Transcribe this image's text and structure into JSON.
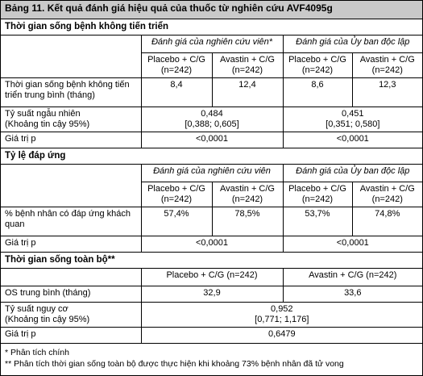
{
  "title": "Bảng 11. Kết quả đánh giá hiệu quả của thuốc từ nghiên cứu AVF4095g",
  "pfs": {
    "heading": "Thời gian sống bệnh không tiến triển",
    "hdr_investigator": "Đánh giá của nghiên cứu viên*",
    "hdr_committee": "Đánh giá của Ủy ban độc lập",
    "col_placebo_1": "Placebo + C/G",
    "col_placebo_2": "(n=242)",
    "col_avastin_1": "Avastin + C/G",
    "col_avastin_2": "(n=242)",
    "median_label_1": "Thời gian sống bệnh không tiến",
    "median_label_2": "triển trung bình (tháng)",
    "median_inv_placebo": "8,4",
    "median_inv_avastin": "12,4",
    "median_irc_placebo": "8,6",
    "median_irc_avastin": "12,3",
    "hr_label_1": "Tỷ suất ngẫu nhiên",
    "hr_label_2": "(Khoảng tin cậy 95%)",
    "hr_inv_value": "0,484",
    "hr_inv_ci": "[0,388; 0,605]",
    "hr_irc_value": "0,451",
    "hr_irc_ci": "[0,351; 0,580]",
    "p_label": "Giá trị p",
    "p_inv": "<0,0001",
    "p_irc": "<0,0001"
  },
  "orr": {
    "heading": "Tỷ lệ đáp ứng",
    "hdr_investigator": "Đánh giá của nghiên cứu viên",
    "hdr_committee": "Đánh giá của Ủy ban độc lập",
    "col_placebo_1": "Placebo + C/G",
    "col_placebo_2": "(n=242)",
    "col_avastin_1": "Avastin + C/G",
    "col_avastin_2": "(n=242)",
    "rate_label_1": "% bệnh nhân có đáp ứng khách",
    "rate_label_2": "quan",
    "rate_inv_placebo": "57,4%",
    "rate_inv_avastin": "78,5%",
    "rate_irc_placebo": "53,7%",
    "rate_irc_avastin": "74,8%",
    "p_label": "Giá trị p",
    "p_inv": "<0,0001",
    "p_irc": "<0,0001"
  },
  "os": {
    "heading": "Thời gian sống toàn bộ**",
    "col_placebo": "Placebo + C/G (n=242)",
    "col_avastin": "Avastin + C/G (n=242)",
    "median_label": "OS trung bình (tháng)",
    "median_placebo": "32,9",
    "median_avastin": "33,6",
    "hr_label_1": "Tỷ suất nguy cơ",
    "hr_label_2": "(Khoảng tin cậy 95%)",
    "hr_value": "0,952",
    "hr_ci": "[0,771; 1,176]",
    "p_label": "Giá trị p",
    "p_value": "0,6479"
  },
  "footnotes": {
    "note1": "* Phân tích chính",
    "note2": "** Phân tích thời gian sống toàn bộ được thực hiện khi khoảng 73% bệnh nhân đã tử vong"
  }
}
